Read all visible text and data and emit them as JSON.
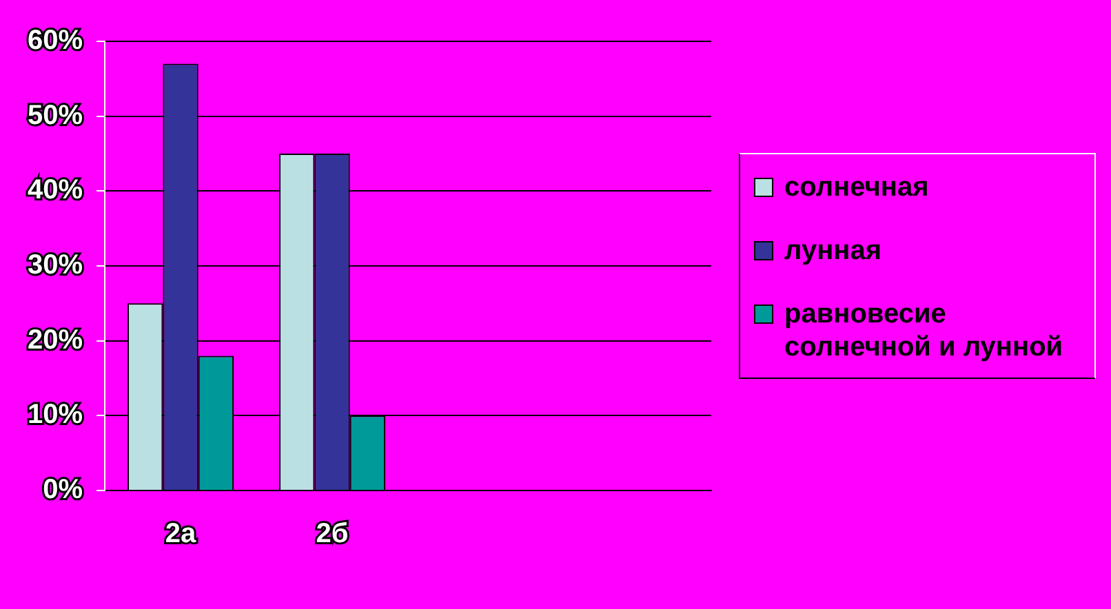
{
  "chart_data": {
    "type": "bar",
    "categories": [
      "2а",
      "2б",
      null,
      null
    ],
    "series": [
      {
        "name": "солнечная",
        "color": "#bbe0e3",
        "values": [
          25,
          45,
          null,
          null
        ]
      },
      {
        "name": "лунная",
        "color": "#333399",
        "values": [
          57,
          45,
          null,
          null
        ]
      },
      {
        "name": "равновесие солнечной и лунной",
        "color": "#009999",
        "values": [
          18,
          10,
          null,
          null
        ]
      }
    ],
    "ylim": [
      0,
      60
    ],
    "yticks": [
      {
        "value": 0,
        "label": "0%"
      },
      {
        "value": 10,
        "label": "10%"
      },
      {
        "value": 20,
        "label": "20%"
      },
      {
        "value": 30,
        "label": "30%"
      },
      {
        "value": 40,
        "label": "40%"
      },
      {
        "value": 50,
        "label": "50%"
      },
      {
        "value": 60,
        "label": "60%"
      }
    ],
    "grid": "y",
    "legend": "right"
  }
}
